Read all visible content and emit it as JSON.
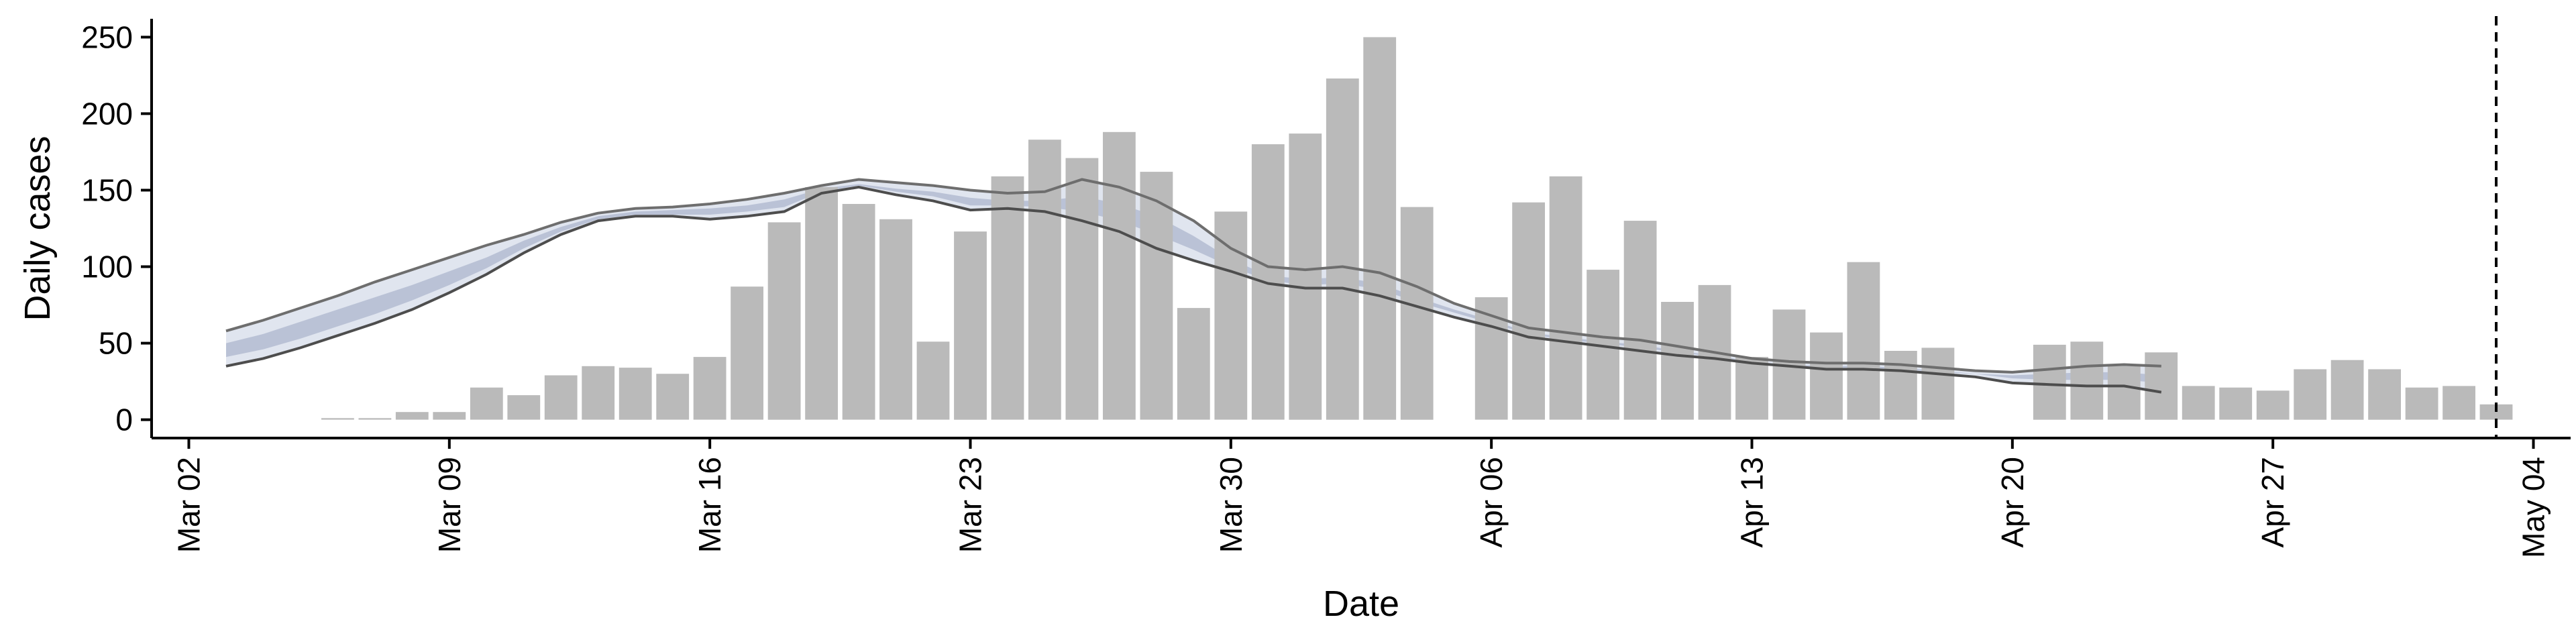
{
  "chart_data": {
    "type": "bar",
    "xlabel": "Date",
    "ylabel": "Daily cases",
    "ylim": [
      -12,
      262
    ],
    "xlim": [
      "2020-03-01",
      "2020-05-05"
    ],
    "x_ticks": [
      {
        "date": "2020-03-02",
        "label": "Mar 02"
      },
      {
        "date": "2020-03-09",
        "label": "Mar 09"
      },
      {
        "date": "2020-03-16",
        "label": "Mar 16"
      },
      {
        "date": "2020-03-23",
        "label": "Mar 23"
      },
      {
        "date": "2020-03-30",
        "label": "Mar 30"
      },
      {
        "date": "2020-04-06",
        "label": "Apr 06"
      },
      {
        "date": "2020-04-13",
        "label": "Apr 13"
      },
      {
        "date": "2020-04-20",
        "label": "Apr 20"
      },
      {
        "date": "2020-04-27",
        "label": "Apr 27"
      },
      {
        "date": "2020-05-04",
        "label": "May 04"
      }
    ],
    "y_ticks": [
      0,
      50,
      100,
      150,
      200,
      250
    ],
    "grid": false,
    "bars": {
      "color": "#bababa",
      "dates": [
        "2020-03-06",
        "2020-03-07",
        "2020-03-08",
        "2020-03-09",
        "2020-03-10",
        "2020-03-11",
        "2020-03-12",
        "2020-03-13",
        "2020-03-14",
        "2020-03-15",
        "2020-03-16",
        "2020-03-17",
        "2020-03-18",
        "2020-03-19",
        "2020-03-20",
        "2020-03-21",
        "2020-03-22",
        "2020-03-23",
        "2020-03-24",
        "2020-03-25",
        "2020-03-26",
        "2020-03-27",
        "2020-03-28",
        "2020-03-29",
        "2020-03-30",
        "2020-03-31",
        "2020-04-01",
        "2020-04-02",
        "2020-04-03",
        "2020-04-04",
        "2020-04-05",
        "2020-04-06",
        "2020-04-07",
        "2020-04-08",
        "2020-04-09",
        "2020-04-10",
        "2020-04-11",
        "2020-04-12",
        "2020-04-13",
        "2020-04-14",
        "2020-04-15",
        "2020-04-16",
        "2020-04-17",
        "2020-04-18",
        "2020-04-19",
        "2020-04-20",
        "2020-04-21",
        "2020-04-22",
        "2020-04-23",
        "2020-04-24",
        "2020-04-25",
        "2020-04-26",
        "2020-04-27",
        "2020-04-28",
        "2020-04-29",
        "2020-04-30",
        "2020-05-01",
        "2020-05-02",
        "2020-05-03"
      ],
      "values": [
        1,
        1,
        5,
        5,
        21,
        16,
        29,
        35,
        34,
        30,
        41,
        87,
        129,
        152,
        141,
        131,
        51,
        123,
        159,
        183,
        171,
        188,
        162,
        73,
        136,
        180,
        187,
        223,
        250,
        139,
        null,
        80,
        142,
        159,
        98,
        130,
        77,
        88,
        41,
        72,
        57,
        103,
        45,
        47,
        null,
        null,
        49,
        51,
        35,
        44,
        22,
        21,
        19,
        33,
        39,
        33,
        21,
        22,
        10
      ]
    },
    "reference_line": {
      "date": "2020-05-03",
      "style": "dashed"
    },
    "band": {
      "color": "#c7cfe1",
      "inner_color": "#9aa6c1",
      "dates": [
        "2020-03-03",
        "2020-03-04",
        "2020-03-05",
        "2020-03-06",
        "2020-03-07",
        "2020-03-08",
        "2020-03-09",
        "2020-03-10",
        "2020-03-11",
        "2020-03-12",
        "2020-03-13",
        "2020-03-14",
        "2020-03-15",
        "2020-03-16",
        "2020-03-17",
        "2020-03-18",
        "2020-03-19",
        "2020-03-20",
        "2020-03-21",
        "2020-03-22",
        "2020-03-23",
        "2020-03-24",
        "2020-03-25",
        "2020-03-26",
        "2020-03-27",
        "2020-03-28",
        "2020-03-29",
        "2020-03-30",
        "2020-03-31",
        "2020-04-01",
        "2020-04-02",
        "2020-04-03",
        "2020-04-04",
        "2020-04-05",
        "2020-04-06",
        "2020-04-07",
        "2020-04-08",
        "2020-04-09",
        "2020-04-10",
        "2020-04-11",
        "2020-04-12",
        "2020-04-13",
        "2020-04-14",
        "2020-04-15",
        "2020-04-16",
        "2020-04-17",
        "2020-04-18",
        "2020-04-19",
        "2020-04-20",
        "2020-04-21",
        "2020-04-22",
        "2020-04-23",
        "2020-04-24"
      ],
      "upper": [
        58,
        65,
        73,
        81,
        90,
        98,
        106,
        114,
        121,
        129,
        135,
        138,
        139,
        141,
        144,
        148,
        153,
        157,
        155,
        153,
        150,
        148,
        149,
        157,
        152,
        143,
        130,
        112,
        100,
        98,
        100,
        96,
        87,
        76,
        68,
        60,
        57,
        54,
        52,
        48,
        44,
        40,
        38,
        37,
        37,
        36,
        34,
        32,
        31,
        33,
        35,
        36,
        35
      ],
      "lower": [
        35,
        40,
        47,
        55,
        63,
        72,
        83,
        95,
        109,
        121,
        130,
        133,
        133,
        131,
        133,
        136,
        148,
        152,
        147,
        143,
        137,
        138,
        136,
        130,
        123,
        112,
        104,
        97,
        89,
        86,
        86,
        81,
        74,
        67,
        61,
        54,
        51,
        48,
        45,
        42,
        40,
        37,
        35,
        33,
        33,
        32,
        30,
        28,
        24,
        23,
        22,
        22,
        18
      ],
      "inner_upper": [
        50,
        56,
        64,
        72,
        80,
        88,
        97,
        106,
        117,
        126,
        133,
        136,
        137,
        138,
        140,
        144,
        151,
        154,
        151,
        149,
        145,
        143,
        143,
        146,
        141,
        133,
        120,
        105,
        94,
        92,
        93,
        89,
        80,
        72,
        65,
        57,
        54,
        51,
        49,
        45,
        42,
        38,
        36,
        35,
        35,
        34,
        32,
        30,
        29,
        30,
        31,
        31,
        29
      ],
      "inner_lower": [
        41,
        46,
        53,
        61,
        69,
        78,
        88,
        99,
        112,
        123,
        131,
        134,
        134,
        134,
        136,
        139,
        149,
        153,
        149,
        146,
        140,
        140,
        139,
        136,
        130,
        121,
        111,
        100,
        91,
        88,
        89,
        85,
        77,
        70,
        63,
        56,
        52,
        50,
        47,
        44,
        41,
        38,
        36,
        34,
        34,
        33,
        31,
        30,
        27,
        26,
        26,
        26,
        24
      ]
    }
  }
}
